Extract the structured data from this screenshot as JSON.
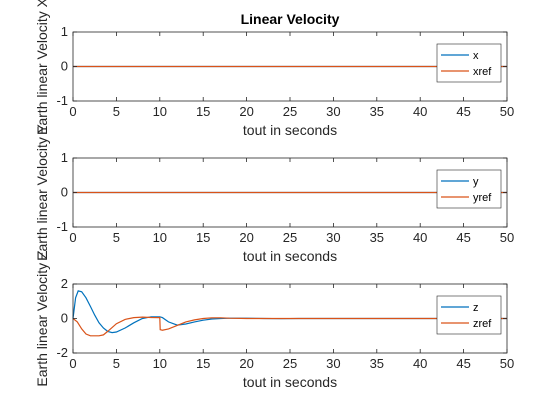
{
  "figure": {
    "title": "Linear Velocity"
  },
  "chart_data": [
    {
      "type": "line",
      "xlabel": "tout in seconds",
      "ylabel": "Earth linear Velocity X",
      "xlim": [
        0,
        50
      ],
      "ylim": [
        -1,
        1
      ],
      "xticks": [
        0,
        5,
        10,
        15,
        20,
        25,
        30,
        35,
        40,
        45,
        50
      ],
      "yticks": [
        1,
        0,
        -1
      ],
      "grid": false,
      "legend_position": "top-right",
      "series": [
        {
          "name": "x",
          "color": "#0072BD",
          "x": [
            0,
            50
          ],
          "y": [
            0,
            0
          ]
        },
        {
          "name": "xref",
          "color": "#D95319",
          "x": [
            0,
            50
          ],
          "y": [
            0,
            0
          ]
        }
      ]
    },
    {
      "type": "line",
      "xlabel": "tout in seconds",
      "ylabel": "Earth linear Velocity Y",
      "xlim": [
        0,
        50
      ],
      "ylim": [
        -1,
        1
      ],
      "xticks": [
        0,
        5,
        10,
        15,
        20,
        25,
        30,
        35,
        40,
        45,
        50
      ],
      "yticks": [
        1,
        0,
        -1
      ],
      "grid": false,
      "legend_position": "top-right",
      "series": [
        {
          "name": "y",
          "color": "#0072BD",
          "x": [
            0,
            50
          ],
          "y": [
            0,
            0
          ]
        },
        {
          "name": "yref",
          "color": "#D95319",
          "x": [
            0,
            50
          ],
          "y": [
            0,
            0
          ]
        }
      ]
    },
    {
      "type": "line",
      "xlabel": "tout in seconds",
      "ylabel": "Earth linear Velocity Z",
      "xlim": [
        0,
        50
      ],
      "ylim": [
        -2,
        2
      ],
      "xticks": [
        0,
        5,
        10,
        15,
        20,
        25,
        30,
        35,
        40,
        45,
        50
      ],
      "yticks": [
        2,
        0,
        -2
      ],
      "grid": false,
      "legend_position": "top-right",
      "series": [
        {
          "name": "z",
          "color": "#0072BD",
          "x": [
            0,
            0.3,
            0.6,
            1,
            1.5,
            2,
            2.5,
            3,
            3.5,
            4,
            4.5,
            5,
            6,
            7,
            8,
            9,
            10,
            10.3,
            11,
            12,
            13,
            14,
            15,
            16,
            17,
            18,
            20,
            22,
            24,
            26,
            30,
            35,
            40,
            45,
            50
          ],
          "y": [
            0,
            1.2,
            1.6,
            1.55,
            1.2,
            0.7,
            0.2,
            -0.25,
            -0.55,
            -0.75,
            -0.82,
            -0.78,
            -0.55,
            -0.25,
            0,
            0.1,
            0.1,
            0.05,
            -0.2,
            -0.38,
            -0.32,
            -0.2,
            -0.1,
            -0.03,
            0,
            0.02,
            0.02,
            0,
            -0.01,
            0,
            0,
            0,
            0,
            0,
            0
          ]
        },
        {
          "name": "zref",
          "color": "#D95319",
          "x": [
            0,
            0.5,
            1,
            1.5,
            2,
            2.5,
            3,
            3.5,
            4,
            5,
            6,
            7,
            8,
            9,
            10,
            10.05,
            10.3,
            11,
            12,
            13,
            14,
            15,
            16,
            17,
            18,
            20,
            22,
            25,
            30,
            40,
            50
          ],
          "y": [
            0,
            -0.2,
            -0.6,
            -0.9,
            -1.0,
            -1.0,
            -1.0,
            -0.95,
            -0.75,
            -0.3,
            -0.05,
            0.05,
            0.08,
            0.06,
            0.05,
            -0.65,
            -0.68,
            -0.6,
            -0.4,
            -0.2,
            -0.08,
            0,
            0.04,
            0.04,
            0.02,
            0,
            0,
            0,
            0,
            0,
            0
          ]
        }
      ]
    }
  ]
}
